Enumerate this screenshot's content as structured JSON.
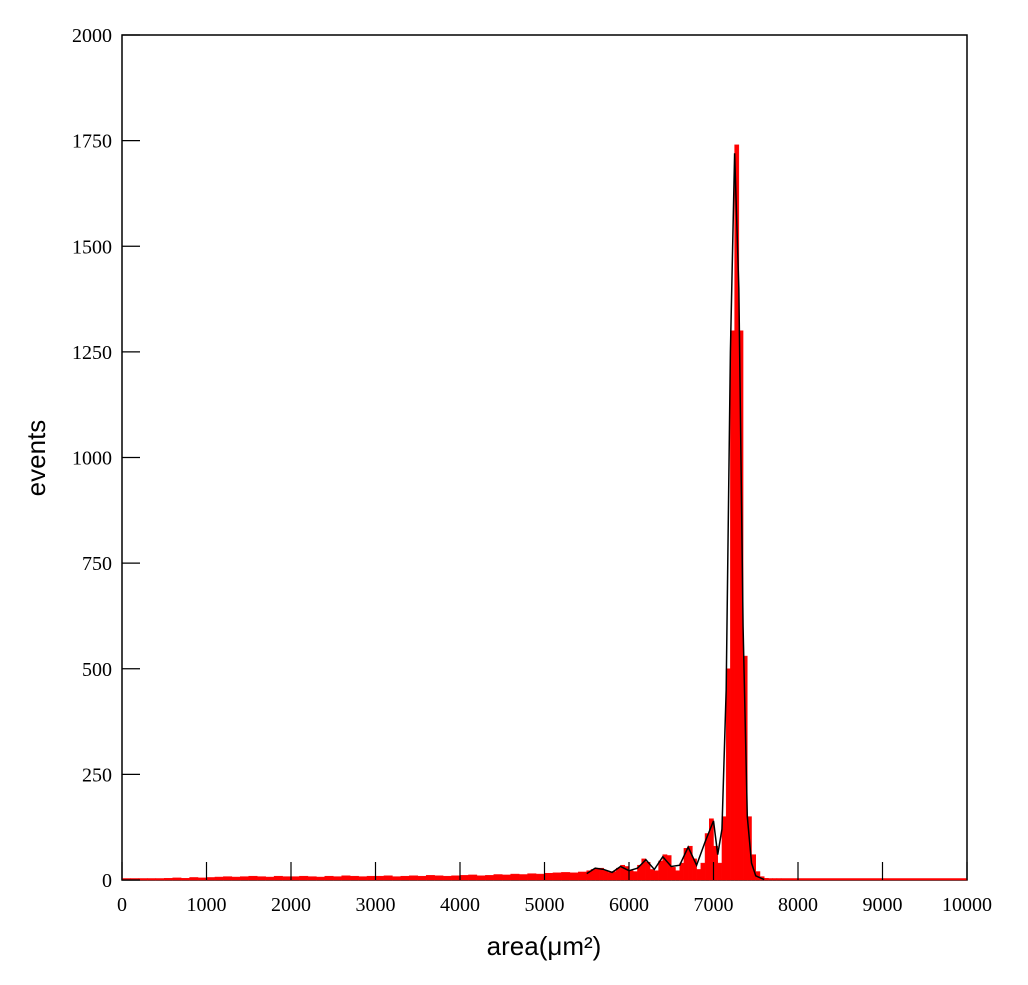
{
  "chart_data": {
    "type": "histogram",
    "xlabel": "area(μm²)",
    "ylabel": "events",
    "bins": [
      0,
      100,
      200,
      300,
      400,
      500,
      600,
      700,
      800,
      900,
      1000,
      1100,
      1200,
      1300,
      1400,
      1500,
      1600,
      1700,
      1800,
      1900,
      2000,
      2100,
      2200,
      2300,
      2400,
      2500,
      2600,
      2700,
      2800,
      2900,
      3000,
      3100,
      3200,
      3300,
      3400,
      3500,
      3600,
      3700,
      3800,
      3900,
      4000,
      4100,
      4200,
      4300,
      4400,
      4500,
      4600,
      4700,
      4800,
      4900,
      5000,
      5100,
      5200,
      5300,
      5400,
      5500,
      5550,
      5600,
      5650,
      5700,
      5750,
      5800,
      5850,
      5900,
      5950,
      6000,
      6050,
      6100,
      6150,
      6200,
      6250,
      6300,
      6350,
      6400,
      6450,
      6500,
      6550,
      6600,
      6650,
      6700,
      6750,
      6800,
      6850,
      6900,
      6950,
      7000,
      7050,
      7100,
      7150,
      7200,
      7250,
      7300,
      7350,
      7400,
      7450,
      7500,
      7550,
      7600,
      7650,
      7700,
      7750,
      7800,
      10000
    ],
    "counts": [
      0,
      1,
      1,
      2,
      2,
      4,
      5,
      4,
      6,
      5,
      6,
      7,
      8,
      7,
      8,
      9,
      8,
      7,
      9,
      8,
      8,
      9,
      8,
      7,
      9,
      8,
      10,
      9,
      8,
      9,
      9,
      10,
      8,
      9,
      10,
      9,
      11,
      10,
      9,
      10,
      11,
      12,
      10,
      11,
      13,
      12,
      14,
      13,
      15,
      14,
      16,
      17,
      18,
      17,
      19,
      22,
      25,
      28,
      28,
      22,
      18,
      20,
      28,
      35,
      32,
      22,
      20,
      35,
      50,
      42,
      25,
      22,
      45,
      60,
      58,
      30,
      22,
      40,
      75,
      80,
      50,
      25,
      40,
      110,
      145,
      80,
      40,
      150,
      500,
      1300,
      1740,
      1300,
      530,
      150,
      60,
      20,
      8,
      4,
      2,
      1,
      0,
      0
    ],
    "color": "#ff0000",
    "fit": {
      "color": "#000000",
      "x": [
        5500,
        5600,
        5700,
        5800,
        5900,
        6000,
        6100,
        6200,
        6300,
        6400,
        6500,
        6600,
        6700,
        6800,
        6900,
        7000,
        7050,
        7100,
        7150,
        7200,
        7250,
        7300,
        7350,
        7400,
        7450,
        7500,
        7600
      ],
      "values": [
        15,
        28,
        25,
        18,
        32,
        22,
        28,
        48,
        25,
        55,
        32,
        35,
        78,
        35,
        90,
        140,
        60,
        120,
        450,
        1250,
        1720,
        1400,
        600,
        150,
        40,
        10,
        1
      ]
    },
    "xlim": [
      0,
      10000
    ],
    "xticks": [
      0,
      1000,
      2000,
      3000,
      4000,
      5000,
      6000,
      7000,
      8000,
      9000,
      10000
    ],
    "ylim": [
      0,
      2000
    ],
    "yticks": [
      0,
      250,
      500,
      750,
      1000,
      1250,
      1500,
      1750,
      2000
    ]
  }
}
